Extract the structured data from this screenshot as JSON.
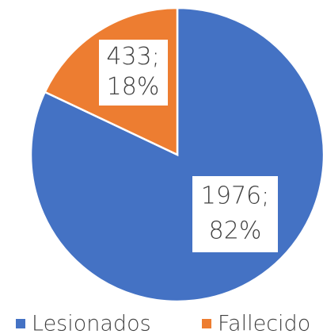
{
  "chart_data": {
    "type": "pie",
    "categories": [
      "Lesionados",
      "Fallecido"
    ],
    "values": [
      1976,
      433
    ],
    "value_labels": [
      "1976;",
      "433;"
    ],
    "percents": [
      82,
      18
    ],
    "percent_labels": [
      "82%",
      "18%"
    ],
    "colors": [
      "#4472c4",
      "#ed7d31"
    ],
    "legend": "bottom"
  }
}
